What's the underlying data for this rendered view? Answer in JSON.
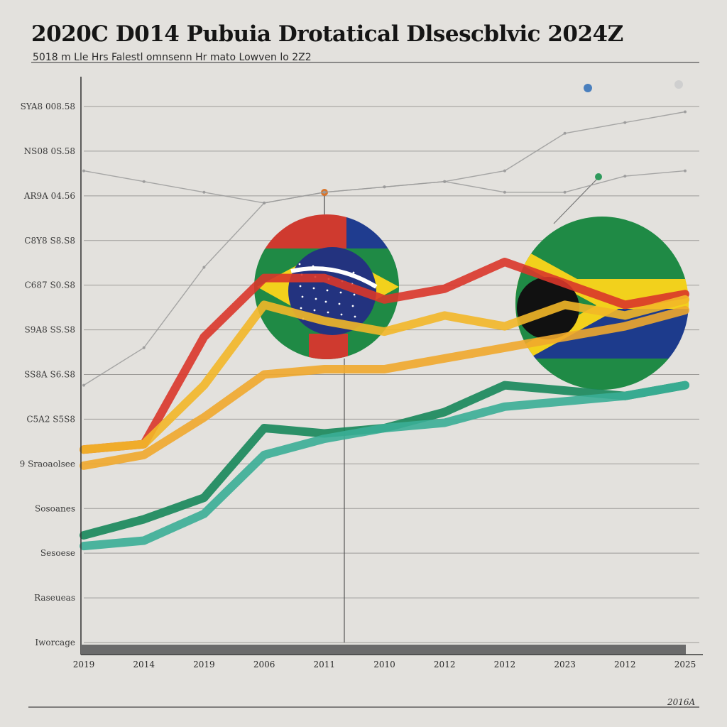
{
  "title": "2020C D014 Pubuia Drotatical Dlsescblvic 2024Z",
  "subtitle": "5018 m Lle Hrs Falestl omnsenn Hr mato Lowven lo 2Z2",
  "footer_note": "2016A",
  "chart_data": {
    "type": "line",
    "title": "2020C D014 Pubuia Drotatical Dlsescblvic 2024Z",
    "subtitle": "5018 m Lle Hrs Falestl omnsenn Hr mato Lowven lo 2Z2",
    "xlabel": "",
    "ylabel": "",
    "categories": [
      "2019",
      "2014",
      "2019",
      "2006",
      "2011",
      "2010",
      "2012",
      "2012",
      "2023",
      "2012",
      "2025"
    ],
    "y_tick_labels": [
      "SYA8 008.58",
      "NS08 0S.58",
      "AR9A 04.56",
      "C8Y8 S8.S8",
      "C687 S0.S8",
      "S9A8 SS.S8",
      "SS8A S6.S8",
      "C5A2 S5S8",
      "9 Sraoaolsee",
      "Sosoanes",
      "Sesoese",
      "Raseueas",
      "Iworcage"
    ],
    "ylim": [
      0,
      100
    ],
    "grid": true,
    "legend": "none",
    "series": [
      {
        "color": "#d9362a",
        "values": [
          36,
          37,
          57,
          68,
          68,
          64,
          66,
          71,
          67,
          63,
          65
        ]
      },
      {
        "color": "#f2b728",
        "values": [
          36,
          37,
          48,
          63,
          60,
          58,
          61,
          59,
          63,
          61,
          64
        ]
      },
      {
        "color": "#f0a82c",
        "values": [
          33,
          35,
          42,
          50,
          51,
          51,
          53,
          55,
          57,
          59,
          62
        ]
      },
      {
        "color": "#16875a",
        "values": [
          20,
          23,
          27,
          40,
          39,
          40,
          43,
          48,
          47,
          46,
          48
        ]
      },
      {
        "color": "#3aae96",
        "values": [
          18,
          19,
          24,
          35,
          38,
          40,
          41,
          44,
          45,
          46,
          48
        ]
      },
      {
        "color": "#9a9a9a",
        "values": [
          48,
          55,
          70,
          82,
          84,
          85,
          86,
          88,
          95,
          97,
          99
        ]
      },
      {
        "color": "#9a9a9a",
        "values": [
          88,
          86,
          84,
          82,
          84,
          85,
          86,
          84,
          84,
          87,
          88
        ]
      }
    ],
    "flag_left": {
      "colors": [
        "#cf3a2f",
        "#1f3c8f",
        "#1f8a45",
        "#f2d11c",
        "#23337f"
      ]
    },
    "flag_right": {
      "colors": [
        "#1f8a45",
        "#f2d11c",
        "#1d3b8c",
        "#111111"
      ]
    }
  }
}
